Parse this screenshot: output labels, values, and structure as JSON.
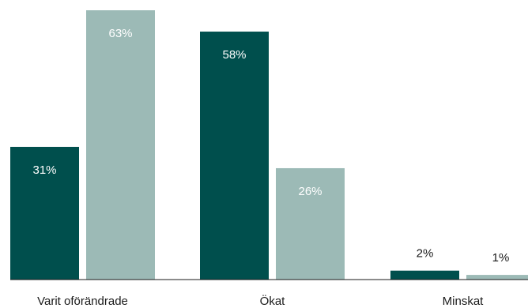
{
  "chart_data": {
    "type": "bar",
    "categories": [
      "Varit oförändrade",
      "Ökat",
      "Minskat"
    ],
    "series": [
      {
        "values": [
          31,
          58,
          2
        ],
        "color": "#004f4d"
      },
      {
        "values": [
          63,
          26,
          1
        ],
        "color": "#9cbab6"
      }
    ],
    "value_suffix": "%",
    "ylim": [
      0,
      63
    ],
    "grid": false,
    "legend": "none"
  }
}
